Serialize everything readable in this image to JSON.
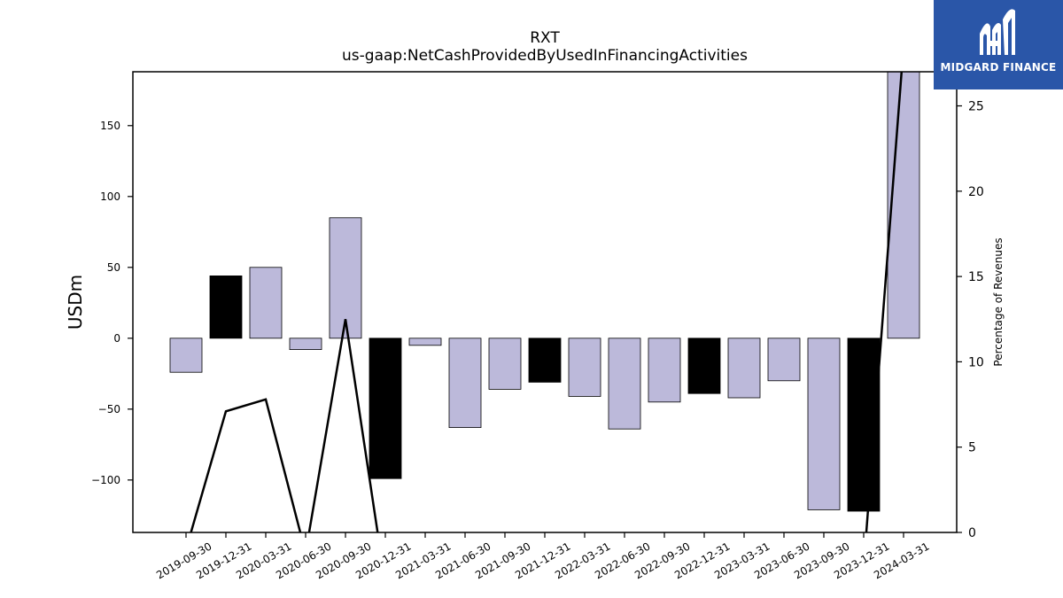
{
  "brand": {
    "name": "MIDGARD FINANCE",
    "color": "#2a56a8",
    "icon": "midgard-logo-icon"
  },
  "chart_data": {
    "type": "bar",
    "title": "RXT",
    "subtitle": "us-gaap:NetCashProvidedByUsedInFinancingActivities",
    "ylabel": "USDm",
    "y2label": "Percentage of Revenues",
    "ylim": [
      -137,
      188
    ],
    "y2lim": [
      0,
      27
    ],
    "yticks": [
      -100,
      -50,
      0,
      50,
      100,
      150
    ],
    "y2ticks": [
      0,
      5,
      10,
      15,
      20,
      25
    ],
    "grid": false,
    "legend": "none",
    "categories": [
      "2019-09-30",
      "2019-12-31",
      "2020-03-31",
      "2020-06-30",
      "2020-09-30",
      "2020-12-31",
      "2021-03-31",
      "2021-06-30",
      "2021-09-30",
      "2021-12-31",
      "2022-03-31",
      "2022-06-30",
      "2022-09-30",
      "2022-12-31",
      "2023-03-31",
      "2023-06-30",
      "2023-09-30",
      "2023-12-31",
      "2024-03-31"
    ],
    "values": [
      -24,
      44,
      50,
      -8,
      85,
      -99,
      -5,
      -63,
      -36,
      -31,
      -41,
      -64,
      -45,
      -39,
      -42,
      -30,
      -121,
      -122,
      190
    ],
    "bar_colors": [
      "#bcb9da",
      "#000000",
      "#bcb9da",
      "#bcb9da",
      "#bcb9da",
      "#000000",
      "#bcb9da",
      "#bcb9da",
      "#bcb9da",
      "#000000",
      "#bcb9da",
      "#bcb9da",
      "#bcb9da",
      "#000000",
      "#bcb9da",
      "#bcb9da",
      "#bcb9da",
      "#000000",
      "#bcb9da"
    ],
    "line_series": {
      "axis": "right",
      "color": "#000000",
      "values": [
        -1.0,
        7.1,
        7.8,
        -1.2,
        12.5,
        -3.0,
        null,
        null,
        null,
        null,
        null,
        null,
        null,
        null,
        null,
        null,
        null,
        -2.0,
        28.5
      ]
    }
  }
}
